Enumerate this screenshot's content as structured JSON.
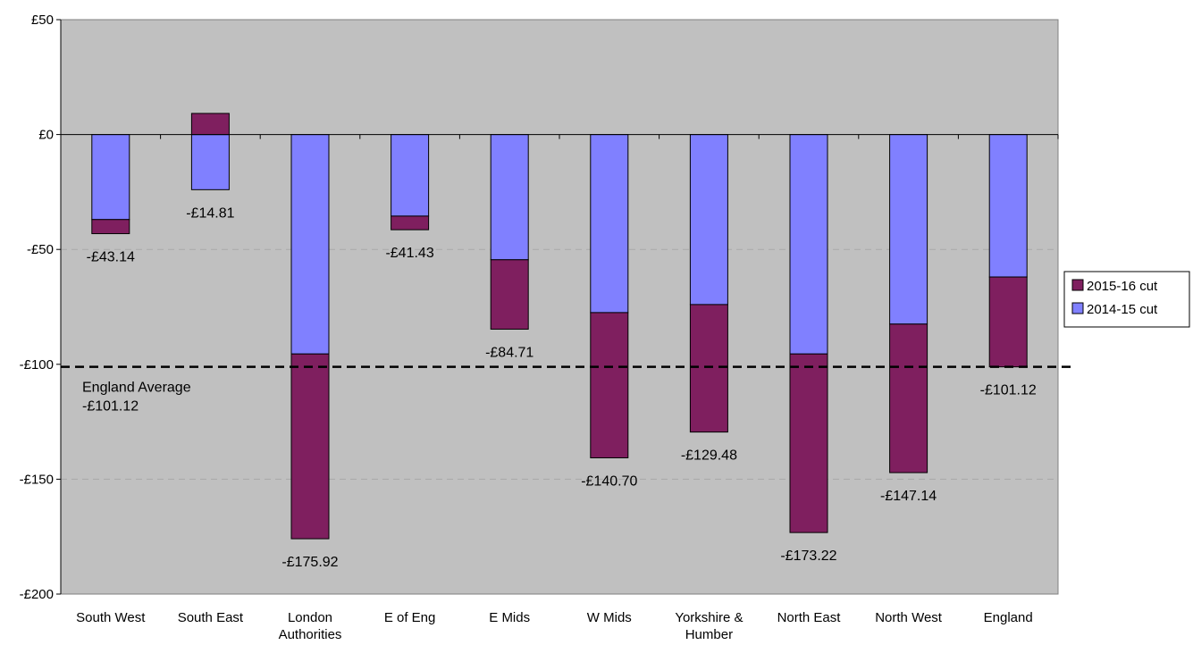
{
  "chart_data": {
    "type": "bar",
    "stacked": true,
    "categories": [
      [
        "South West"
      ],
      [
        "South East"
      ],
      [
        "London",
        "Authorities"
      ],
      [
        "E of Eng"
      ],
      [
        "E Mids"
      ],
      [
        "W Mids"
      ],
      [
        "Yorkshire &",
        "Humber"
      ],
      [
        "North East"
      ],
      [
        "North West"
      ],
      [
        "England"
      ]
    ],
    "series": [
      {
        "name": "2014-15 cut",
        "color": "#8080ff",
        "values": [
          -37,
          -24,
          -95.5,
          -35.5,
          -54.5,
          -77.5,
          -74,
          -95.5,
          -82.5,
          -62
        ]
      },
      {
        "name": "2015-16 cut",
        "color": "#7f1f5f",
        "values": [
          -6.14,
          9.19,
          -80.42,
          -5.93,
          -30.21,
          -63.2,
          -55.48,
          -77.72,
          -64.64,
          -39.12
        ]
      }
    ],
    "totals": [
      -43.14,
      -14.81,
      -175.92,
      -41.43,
      -84.71,
      -140.7,
      -129.48,
      -173.22,
      -147.14,
      -101.12
    ],
    "data_labels": [
      "-£43.14",
      "-£14.81",
      "-£175.92",
      "-£41.43",
      "-£84.71",
      "-£140.70",
      "-£129.48",
      "-£173.22",
      "-£147.14",
      "-£101.12"
    ],
    "ylim": [
      -200,
      50
    ],
    "yticks": [
      50,
      0,
      -50,
      -100,
      -150,
      -200
    ],
    "ytick_labels": [
      "£50",
      "£0",
      "-£50",
      "-£100",
      "-£150",
      "-£200"
    ],
    "gridlines": [
      -50,
      -150
    ],
    "grid": true,
    "plot_background": "#c0c0c0",
    "reference_line": {
      "value": -101.12,
      "style": "dashed",
      "label_lines": [
        "England Average",
        "-£101.12"
      ]
    },
    "legend": {
      "position": "right",
      "entries": [
        "2015-16 cut",
        "2014-15 cut"
      ]
    },
    "title": "",
    "xlabel": "",
    "ylabel": ""
  }
}
